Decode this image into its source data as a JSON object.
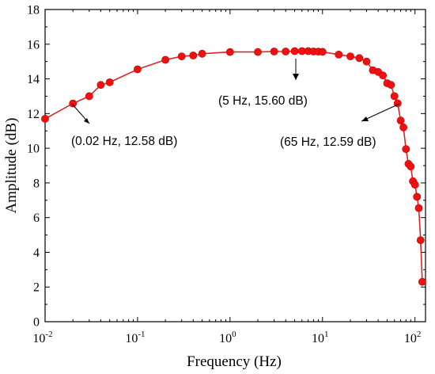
{
  "chart_data": {
    "type": "line",
    "xlabel": "Frequency (Hz)",
    "ylabel": "Amplitude (dB)",
    "x_scale": "log",
    "xlim": [
      0.01,
      130
    ],
    "ylim": [
      0,
      18
    ],
    "x_ticks": [
      {
        "value": 0.01,
        "base": "10",
        "exp": "-2"
      },
      {
        "value": 0.1,
        "base": "10",
        "exp": "-1"
      },
      {
        "value": 1,
        "base": "10",
        "exp": "0"
      },
      {
        "value": 10,
        "base": "10",
        "exp": "1"
      },
      {
        "value": 100,
        "base": "10",
        "exp": "2"
      }
    ],
    "y_ticks": [
      "0",
      "2",
      "4",
      "6",
      "8",
      "10",
      "12",
      "14",
      "16",
      "18"
    ],
    "grid": false,
    "legend": "none",
    "series_color": "#ee1111",
    "series": [
      {
        "x": [
          0.01,
          0.02,
          0.03,
          0.04,
          0.05,
          0.1,
          0.2,
          0.3,
          0.4,
          0.5,
          1,
          2,
          3,
          4,
          5,
          6,
          7,
          8,
          9,
          10,
          15,
          20,
          25,
          30,
          35,
          40,
          45,
          50,
          55,
          60,
          65,
          70,
          75,
          80,
          85,
          90,
          95,
          100,
          105,
          110,
          115,
          120
        ],
        "values": [
          11.7,
          12.58,
          13.0,
          13.65,
          13.8,
          14.55,
          15.1,
          15.3,
          15.35,
          15.45,
          15.55,
          15.55,
          15.58,
          15.58,
          15.6,
          15.6,
          15.6,
          15.58,
          15.57,
          15.56,
          15.4,
          15.3,
          15.2,
          15.0,
          14.5,
          14.4,
          14.2,
          13.75,
          13.65,
          13.0,
          12.59,
          11.6,
          11.2,
          9.95,
          9.1,
          8.95,
          8.1,
          7.9,
          7.2,
          6.55,
          4.7,
          2.3
        ]
      }
    ],
    "annotations": [
      {
        "text": "(0.02 Hz, 12.58 dB)",
        "point": [
          0.02,
          12.58
        ]
      },
      {
        "text": "(5 Hz, 15.60 dB)",
        "point": [
          5,
          15.6
        ]
      },
      {
        "text": "(65 Hz, 12.59 dB)",
        "point": [
          65,
          12.59
        ]
      }
    ]
  }
}
